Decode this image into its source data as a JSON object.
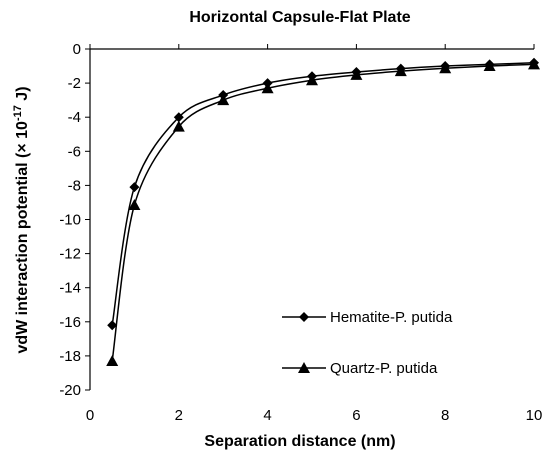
{
  "chart_data": {
    "type": "line",
    "title": "Horizontal Capsule-Flat Plate",
    "xlabel": "Separation distance (nm)",
    "ylabel_main": "vdW interaction potential (× 10",
    "ylabel_exp": "-17",
    "ylabel_tail": " J)",
    "xlim": [
      0,
      10
    ],
    "ylim": [
      -20,
      0
    ],
    "xticks": [
      0,
      2,
      4,
      6,
      8,
      10
    ],
    "yticks": [
      0,
      -2,
      -4,
      -6,
      -8,
      -10,
      -12,
      -14,
      -16,
      -18,
      -20
    ],
    "grid": false,
    "legend_position": "lower-right",
    "series": [
      {
        "name": "Hematite-P. putida",
        "marker": "diamond",
        "color": "#000000",
        "x": [
          0.5,
          1,
          2,
          3,
          4,
          5,
          6,
          7,
          8,
          9,
          10
        ],
        "y": [
          -16.2,
          -8.1,
          -4.0,
          -2.7,
          -2.0,
          -1.6,
          -1.35,
          -1.15,
          -1.0,
          -0.9,
          -0.81
        ]
      },
      {
        "name": "Quartz-P. putida",
        "marker": "triangle",
        "color": "#000000",
        "x": [
          0.5,
          1,
          2,
          3,
          4,
          5,
          6,
          7,
          8,
          9,
          10
        ],
        "y": [
          -18.3,
          -9.15,
          -4.55,
          -3.0,
          -2.3,
          -1.83,
          -1.52,
          -1.3,
          -1.13,
          -1.0,
          -0.9
        ]
      }
    ]
  }
}
